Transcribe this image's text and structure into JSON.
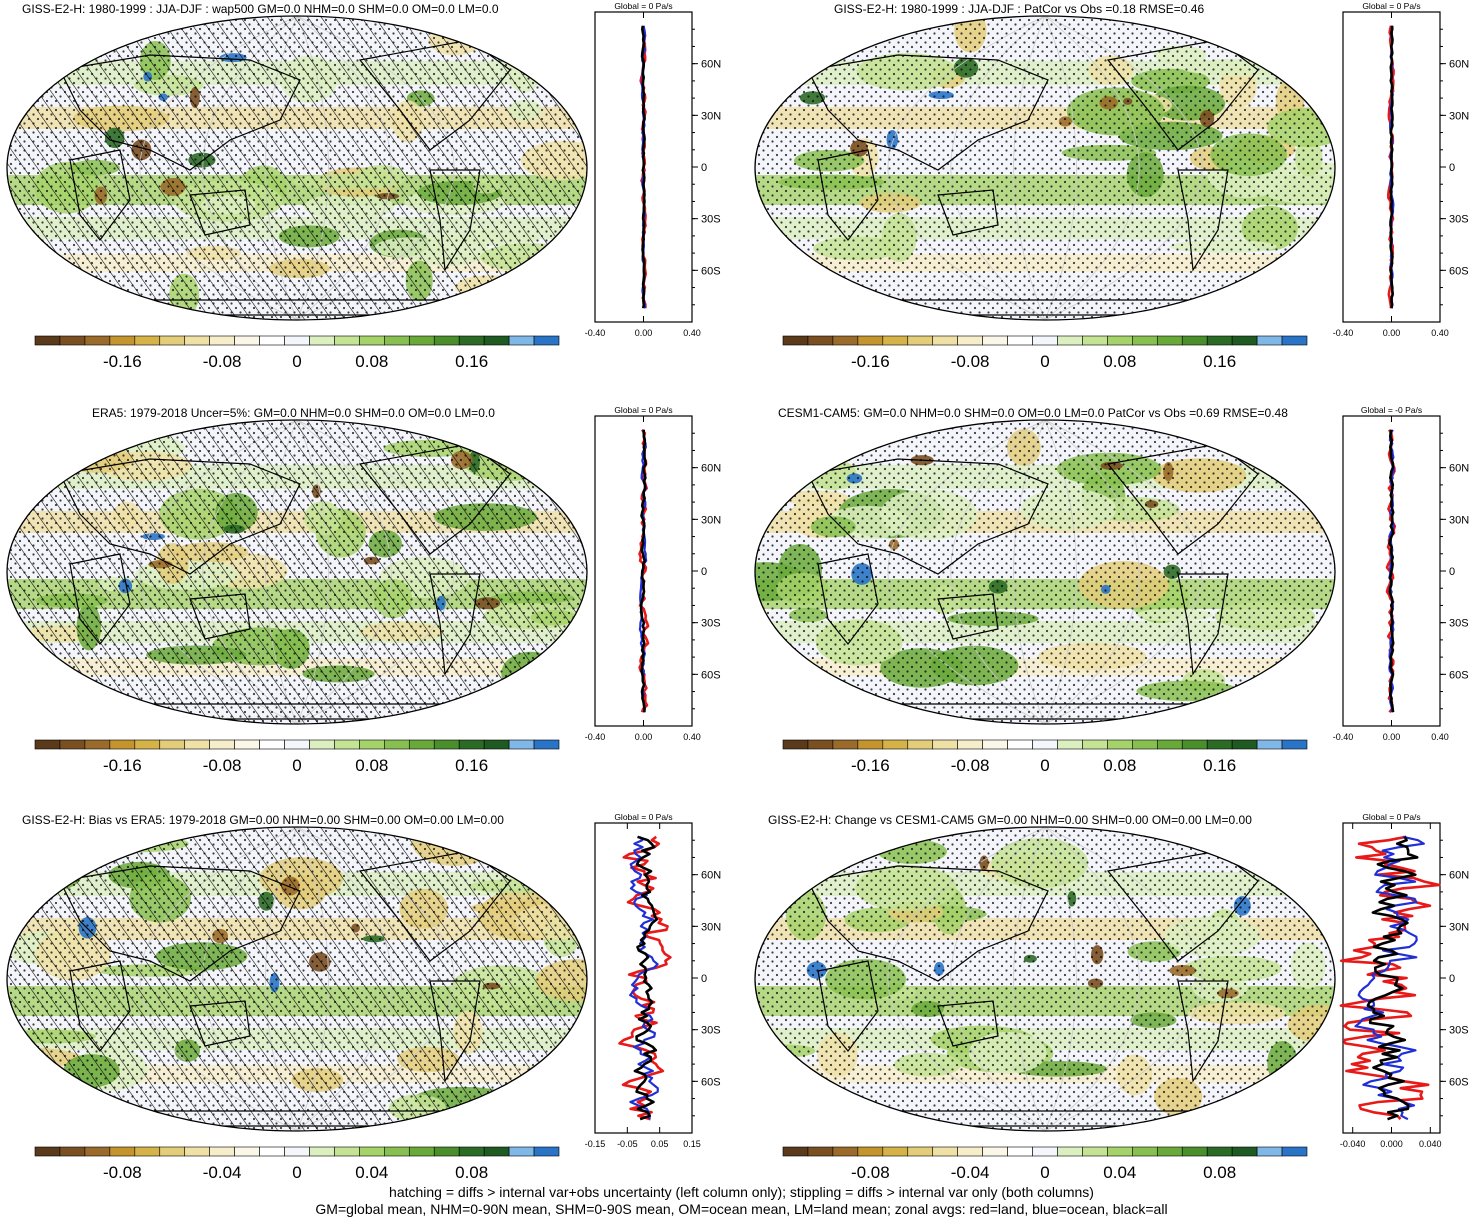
{
  "colors": {
    "red_land": "#e81919",
    "blue_ocean": "#1f2fd6",
    "black_all": "#000000",
    "palette": [
      "#5a3a1a",
      "#7a4f22",
      "#9a6b2b",
      "#c4952e",
      "#d5b348",
      "#e3cd7a",
      "#efe0a6",
      "#f6edcb",
      "#fbf7e8",
      "#ffffff",
      "#f3f6fb",
      "#dcefc0",
      "#c4e394",
      "#a6d26a",
      "#87c050",
      "#69a93a",
      "#4a8f2c",
      "#2c6b26",
      "#1f5a22",
      "#7fb8e6",
      "#2a74c8"
    ]
  },
  "footer": {
    "line1": "hatching = diffs > internal var+obs uncertainty (left column only); stippling = diffs > internal var only (both columns)",
    "line2": "GM=global mean, NHM=0-90N mean, SHM=0-90S mean, OM=ocean mean, LM=land mean; zonal avgs: red=land, blue=ocean, black=all"
  },
  "chart_data": [
    {
      "type": "heatmap",
      "title": "GISS-E2-H: 1980-1999 : JJA-DJF : wap500 GM=0.0 NHM=0.0 SHM=0.0 OM=0.0 LM=0.0",
      "hatching": true,
      "colorbar_ticks": [
        "-0.16",
        "-0.08",
        "0",
        "0.08",
        "0.16"
      ],
      "zonal": {
        "header": "Global = 0 Pa/s",
        "xticks": [
          "-0.40",
          "0.00",
          "0.40"
        ],
        "xlim": [
          -0.4,
          0.4
        ],
        "ylabels": [
          "60N",
          "30N",
          "0",
          "30S",
          "60S"
        ],
        "amp": 0.012,
        "seed": 1
      }
    },
    {
      "type": "heatmap",
      "title": "GISS-E2-H: 1980-1999 : JJA-DJF : PatCor vs Obs =0.18 RMSE=0.46",
      "hatching": false,
      "colorbar_ticks": [
        "-0.16",
        "-0.08",
        "0",
        "0.08",
        "0.16"
      ],
      "zonal": {
        "header": "Global = 0 Pa/s",
        "xticks": [
          "-0.40",
          "0.00",
          "0.40"
        ],
        "xlim": [
          -0.4,
          0.4
        ],
        "ylabels": [
          "60N",
          "30N",
          "0",
          "30S",
          "60S"
        ],
        "amp": 0.012,
        "seed": 2
      }
    },
    {
      "type": "heatmap",
      "title": "ERA5: 1979-2018 Uncer=5%: GM=0.0 NHM=0.0 SHM=0.0 OM=0.0 LM=0.0",
      "hatching": true,
      "colorbar_ticks": [
        "-0.16",
        "-0.08",
        "0",
        "0.08",
        "0.16"
      ],
      "zonal": {
        "header": "Global = 0 Pa/s",
        "xticks": [
          "-0.40",
          "0.00",
          "0.40"
        ],
        "xlim": [
          -0.4,
          0.4
        ],
        "ylabels": [
          "60N",
          "30N",
          "0",
          "30S",
          "60S"
        ],
        "amp": 0.02,
        "seed": 3
      }
    },
    {
      "type": "heatmap",
      "title": "CESM1-CAM5: GM=0.0 NHM=0.0 SHM=0.0 OM=0.0 LM=0.0 PatCor vs Obs =0.69 RMSE=0.48",
      "hatching": false,
      "colorbar_ticks": [
        "-0.16",
        "-0.08",
        "0",
        "0.08",
        "0.16"
      ],
      "zonal": {
        "header": "Global = -0 Pa/s",
        "xticks": [
          "-0.40",
          "0.00",
          "0.40"
        ],
        "xlim": [
          -0.4,
          0.4
        ],
        "ylabels": [
          "60N",
          "30N",
          "0",
          "30S",
          "60S"
        ],
        "amp": 0.02,
        "seed": 4
      }
    },
    {
      "type": "heatmap",
      "title": "GISS-E2-H: Bias vs ERA5: 1979-2018 GM=0.00 NHM=0.00 SHM=0.00 OM=0.00 LM=0.00",
      "hatching": true,
      "colorbar_ticks": [
        "-0.08",
        "-0.04",
        "0",
        "0.04",
        "0.08"
      ],
      "zonal": {
        "header": "Global = 0 Pa/s",
        "xticks": [
          "-0.15",
          "-0.05",
          "0.05",
          "0.15"
        ],
        "xlim": [
          -0.15,
          0.15
        ],
        "ylabels": [
          "60N",
          "30N",
          "0",
          "30S",
          "60S"
        ],
        "amp": 0.045,
        "seed": 5
      }
    },
    {
      "type": "heatmap",
      "title": "GISS-E2-H: Change vs CESM1-CAM5 GM=0.00 NHM=0.00 SHM=0.00 OM=0.00 LM=0.00",
      "hatching": false,
      "colorbar_ticks": [
        "-0.08",
        "-0.04",
        "0",
        "0.04",
        "0.08"
      ],
      "zonal": {
        "header": "Global = 0 Pa/s",
        "xticks": [
          "-0.040",
          "0.000",
          "0.040"
        ],
        "xlim": [
          -0.05,
          0.05
        ],
        "ylabels": [
          "60N",
          "30N",
          "0",
          "30S",
          "60S"
        ],
        "amp": 0.03,
        "seed": 6
      }
    }
  ]
}
